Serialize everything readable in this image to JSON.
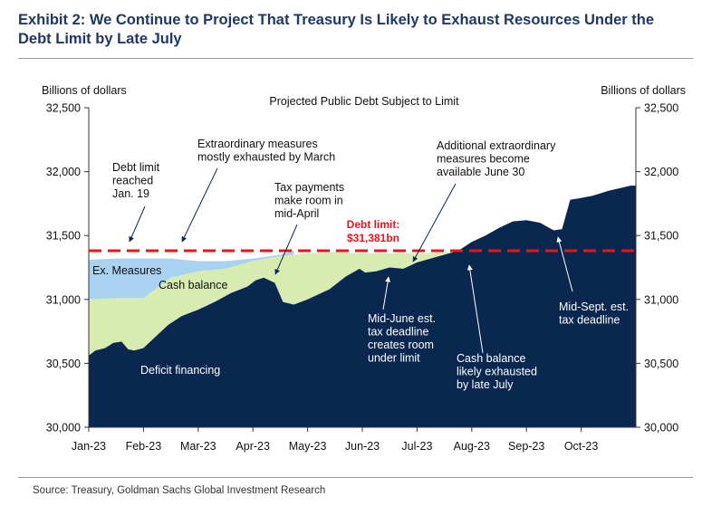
{
  "title": "Exhibit 2: We Continue to Project That Treasury Is Likely to Exhaust Resources Under the Debt Limit by Late July",
  "source": "Source: Treasury, Goldman Sachs Global Investment Research",
  "chart_data": {
    "type": "area",
    "title": "Projected Public Debt Subject to Limit",
    "ylabel_left": "Billions of dollars",
    "ylabel_right": "Billions of dollars",
    "ylim": [
      30000,
      32500
    ],
    "yticks": [
      "32,500",
      "32,000",
      "31,500",
      "31,000",
      "30,500",
      "30,000"
    ],
    "xticks": [
      "Jan-23",
      "Feb-23",
      "Mar-23",
      "Apr-23",
      "May-23",
      "Jun-23",
      "Jul-23",
      "Aug-23",
      "Sep-23",
      "Oct-23"
    ],
    "xlim_months": [
      0,
      10
    ],
    "grid": false,
    "debt_limit": {
      "value": 31381,
      "label_line1": "Debt limit:",
      "label_line2": "$31,381bn",
      "color": "#e8141b"
    },
    "colors": {
      "deficit": "#0a2750",
      "cash": "#d8ecb2",
      "measures": "#a9d1f0"
    },
    "series": [
      {
        "name": "Deficit financing",
        "x": [
          0,
          0.12,
          0.3,
          0.45,
          0.6,
          0.72,
          0.83,
          1.0,
          1.2,
          1.45,
          1.7,
          2.0,
          2.3,
          2.6,
          2.9,
          3.05,
          3.2,
          3.4,
          3.55,
          3.75,
          4.0,
          4.2,
          4.4,
          4.7,
          4.95,
          5.05,
          5.25,
          5.5,
          5.75,
          6.0,
          6.25,
          6.5,
          6.75,
          7.0,
          7.25,
          7.5,
          7.75,
          8.0,
          8.25,
          8.5,
          8.65,
          8.8,
          8.95,
          9.2,
          9.35,
          9.5,
          9.7,
          9.9
        ],
        "values": [
          30560,
          30600,
          30620,
          30660,
          30670,
          30610,
          30600,
          30620,
          30700,
          30800,
          30870,
          30920,
          30980,
          31050,
          31100,
          31150,
          31170,
          31130,
          30980,
          30960,
          31000,
          31040,
          31080,
          31180,
          31240,
          31210,
          31220,
          31250,
          31240,
          31290,
          31320,
          31350,
          31380,
          31450,
          31500,
          31560,
          31610,
          31620,
          31600,
          31540,
          31550,
          31780,
          31790,
          31810,
          31830,
          31850,
          31870,
          31890
        ]
      },
      {
        "name": "Cash balance",
        "x": [
          0,
          0.5,
          1.0,
          1.5,
          2.0,
          2.5,
          3.0,
          3.5,
          4.0,
          4.5,
          5.0,
          5.5,
          6.0,
          6.5,
          7.0,
          7.25
        ],
        "values": [
          31000,
          31010,
          31010,
          31170,
          31220,
          31240,
          31300,
          31340,
          31360,
          31370,
          31360,
          31360,
          31360,
          31370,
          31370,
          31381
        ]
      },
      {
        "name": "Ex. Measures",
        "x": [
          0,
          0.5,
          1.0,
          1.5,
          2.0,
          2.5,
          3.0,
          3.5,
          3.75
        ],
        "values": [
          31310,
          31320,
          31320,
          31320,
          31300,
          31300,
          31320,
          31350,
          31381
        ]
      }
    ],
    "annotations": [
      {
        "lines": [
          "Ex. Measures"
        ]
      },
      {
        "lines": [
          "Cash balance"
        ]
      },
      {
        "lines": [
          "Deficit financing"
        ]
      },
      {
        "lines": [
          "Debt limit",
          "reached",
          "Jan. 19"
        ]
      },
      {
        "lines": [
          "Extraordinary measures",
          "mostly exhausted by March"
        ]
      },
      {
        "lines": [
          "Tax payments",
          "make room in",
          "mid-April"
        ]
      },
      {
        "lines": [
          "Additional extraordinary",
          "measures become",
          "available June 30"
        ]
      },
      {
        "lines": [
          "Mid-June est.",
          "tax deadline",
          "creates room",
          "under limit"
        ]
      },
      {
        "lines": [
          "Cash balance",
          "likely exhausted",
          "by late July"
        ]
      },
      {
        "lines": [
          "Mid-Sept. est.",
          "tax deadline"
        ]
      }
    ]
  }
}
